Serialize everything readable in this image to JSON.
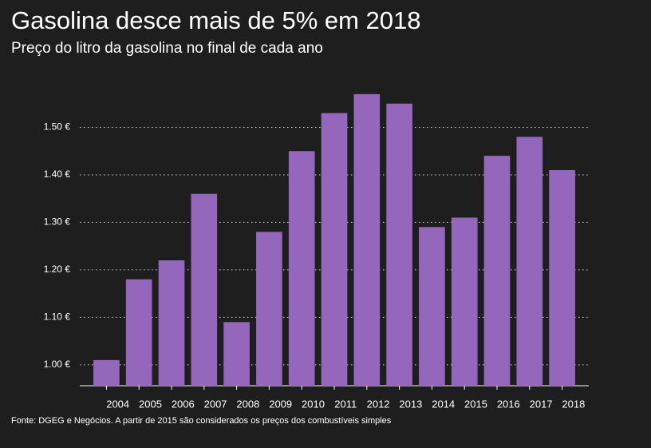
{
  "chart_data": {
    "type": "bar",
    "title": "Gasolina desce mais de 5% em 2018",
    "subtitle": "Preço do litro da gasolina no final de cada ano",
    "source": "Fonte: DGEG e Negócios. A partir de 2015 são considerados os preços dos combustíveis simples",
    "categories": [
      "2004",
      "2005",
      "2006",
      "2007",
      "2008",
      "2009",
      "2010",
      "2011",
      "2012",
      "2013",
      "2014",
      "2015",
      "2016",
      "2017",
      "2018"
    ],
    "values": [
      1.01,
      1.18,
      1.22,
      1.36,
      1.09,
      1.28,
      1.45,
      1.53,
      1.57,
      1.55,
      1.29,
      1.31,
      1.44,
      1.48,
      1.41
    ],
    "color": "#9467bd",
    "ylim": [
      0.956,
      1.6
    ],
    "yticks": [
      {
        "value": 1.0,
        "label": "1.00 €"
      },
      {
        "value": 1.1,
        "label": "1.10 €"
      },
      {
        "value": 1.2,
        "label": "1.20 €"
      },
      {
        "value": 1.3,
        "label": "1.30 €"
      },
      {
        "value": 1.4,
        "label": "1.40 €"
      },
      {
        "value": 1.5,
        "label": "1.50 €"
      }
    ],
    "grid": true
  }
}
